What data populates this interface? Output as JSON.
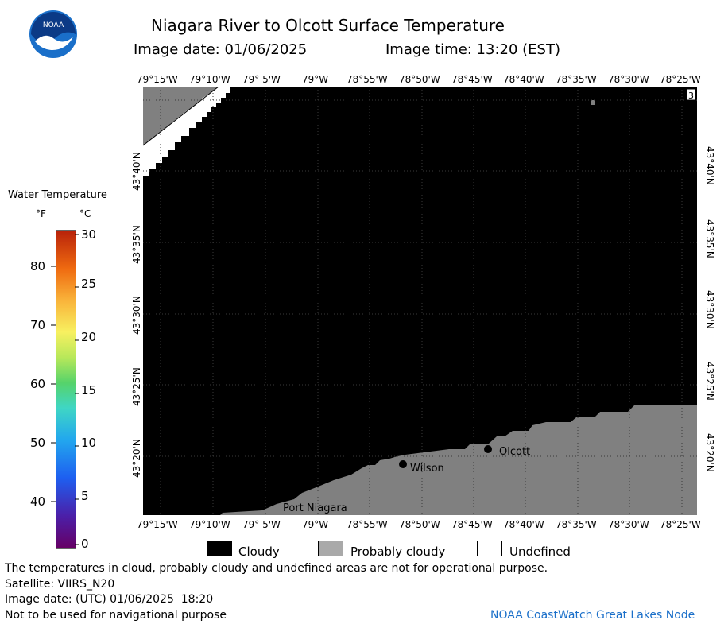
{
  "header": {
    "title": "Niagara River to Olcott Surface Temperature",
    "image_date": "Image date: 01/06/2025",
    "image_time": "Image time: 13:20 (EST)"
  },
  "logo": {
    "text": "NOAA"
  },
  "map": {
    "lon_labels": [
      "79°15'W",
      "79°10'W",
      "79° 5'W",
      "79°W",
      "78°55'W",
      "78°50'W",
      "78°45'W",
      "78°40'W",
      "78°35'W",
      "78°30'W",
      "78°25'W"
    ],
    "lat_labels": [
      "43°40'N",
      "43°35'N",
      "43°30'N",
      "43°25'N",
      "43°20'N"
    ],
    "places": {
      "olcott": "Olcott",
      "wilson": "Wilson",
      "port_niagara": "Port Niagara"
    },
    "corner_label": "3",
    "colors": {
      "cloudy": "#000000",
      "probably_cloudy": "#808080",
      "undefined": "#ffffff"
    }
  },
  "colorbar": {
    "title": "Water Temperature",
    "unit_f": "°F",
    "unit_c": "°C",
    "f_ticks": [
      "80",
      "70",
      "60",
      "50",
      "40"
    ],
    "c_ticks": [
      "30",
      "25",
      "20",
      "15",
      "10",
      "5",
      "0"
    ],
    "c_range": [
      0,
      30
    ]
  },
  "legend": {
    "cloudy": "Cloudy",
    "probably_cloudy": "Probably cloudy",
    "undefined": "Undefined"
  },
  "footer": {
    "disclaimer": "The temperatures in cloud, probably cloudy and undefined areas are not for operational purpose.",
    "satellite": "Satellite: VIIRS_N20",
    "utc_date": "Image date: (UTC) 01/06/2025  18:20",
    "nav": "Not to be used for navigational purpose",
    "credit": "NOAA CoastWatch Great Lakes Node"
  }
}
